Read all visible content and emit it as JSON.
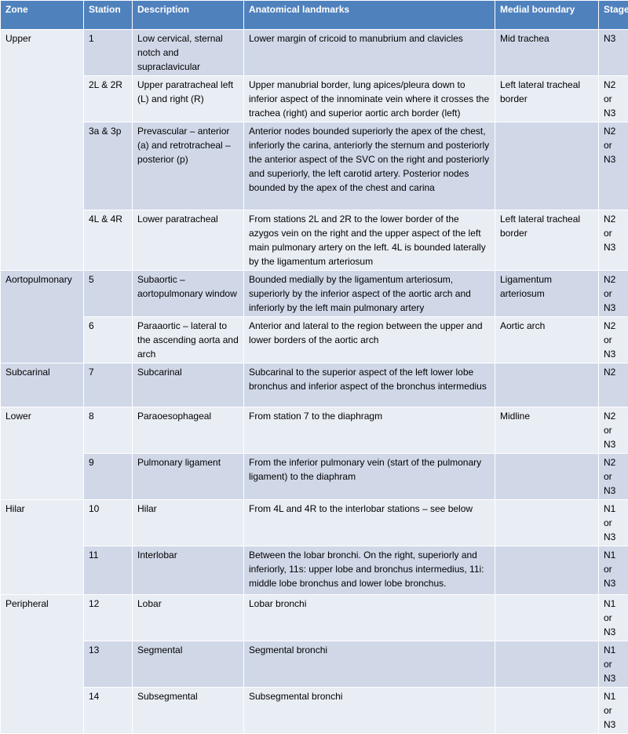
{
  "table": {
    "header": [
      "Zone",
      "Station",
      "Description",
      "Anatomical landmarks",
      "Medial boundary",
      "Stage*"
    ],
    "groups": [
      {
        "zone": "Upper",
        "rows": [
          {
            "station": "1",
            "description": "Low cervical, sternal notch and supraclavicular",
            "landmarks": "Lower margin of cricoid to manubrium and clavicles",
            "boundary": "Mid trachea",
            "stage": "N3"
          },
          {
            "station": "2L & 2R",
            "description": "Upper paratracheal left (L) and right (R)",
            "landmarks": "Upper manubrial border, lung apices/pleura down to inferior aspect of the innominate vein where it crosses the trachea (right) and superior aortic arch border (left)",
            "boundary": "Left lateral tracheal border",
            "stage": "N2 or N3"
          },
          {
            "station": "3a & 3p",
            "description": "Prevascular – anterior (a) and retrotracheal – posterior (p)",
            "landmarks": "Anterior nodes bounded superiorly the apex of the chest, inferiorly the carina, anteriorly the sternum and posteriorly the anterior aspect of the SVC on the right and posteriorly and superiorly, the left carotid artery. Posterior nodes bounded by the apex of the chest and carina",
            "stage": "N2 or N3"
          },
          {
            "station": "4L & 4R",
            "description": "Lower paratracheal",
            "landmarks": "From stations 2L and 2R to the lower border of the azygos vein on the right and the upper aspect of the left main pulmonary artery on the left. 4L is bounded laterally by the ligamentum arteriosum",
            "boundary": "Left lateral tracheal border",
            "stage": "N2 or N3"
          }
        ]
      },
      {
        "zone": "Aortopulmonary",
        "rows": [
          {
            "station": "5",
            "description": "Subaortic – aortopulmonary window",
            "landmarks": "Bounded medially by the ligamentum arteriosum, superiorly by the inferior aspect of the aortic arch and inferiorly by the left main pulmonary artery",
            "boundary": "Ligamentum arteriosum",
            "stage": "N2 or N3"
          },
          {
            "station": "6",
            "description": "Paraaortic – lateral to the ascending aorta and arch",
            "landmarks": "Anterior and lateral to the region between the upper and lower borders of the aortic arch",
            "boundary": "Aortic arch",
            "stage": "N2 or N3"
          }
        ]
      },
      {
        "zone": "Subcarinal",
        "rows": [
          {
            "station": "7",
            "description": "Subcarinal",
            "landmarks": "Subcarinal to the superior aspect of the left lower lobe bronchus and inferior aspect of the bronchus intermedius",
            "stage": "N2"
          }
        ]
      },
      {
        "zone": "Lower",
        "rows": [
          {
            "station": "8",
            "description": "Paraoesophageal",
            "landmarks": "From station 7 to the diaphragm",
            "boundary": "Midline",
            "stage": "N2 or N3"
          },
          {
            "station": "9",
            "description": "Pulmonary ligament",
            "landmarks": "From the inferior pulmonary vein (start of the pulmonary ligament) to the diaphram",
            "stage": "N2 or N3"
          }
        ]
      },
      {
        "zone": "Hilar",
        "rows": [
          {
            "station": "10",
            "description": "Hilar",
            "landmarks": "From 4L and 4R to the interlobar stations – see below",
            "stage": "N1 or N3"
          },
          {
            "station": "11",
            "description": "Interlobar",
            "landmarks": "Between the lobar bronchi. On the right, superiorly and inferiorly, 11s: upper lobe and bronchus intermedius, 11i: middle lobe bronchus and lower lobe bronchus.",
            "stage": "N1 or N3"
          }
        ]
      },
      {
        "zone": "Peripheral",
        "rows": [
          {
            "station": "12",
            "description": "Lobar",
            "landmarks": "Lobar bronchi",
            "stage": "N1 or N3"
          },
          {
            "station": "13",
            "description": "Segmental",
            "landmarks": "Segmental bronchi",
            "stage": "N1 or N3"
          },
          {
            "station": "14",
            "description": "Subsegmental",
            "landmarks": "Subsegmental bronchi",
            "stage": "N1 or N3"
          }
        ]
      }
    ]
  }
}
